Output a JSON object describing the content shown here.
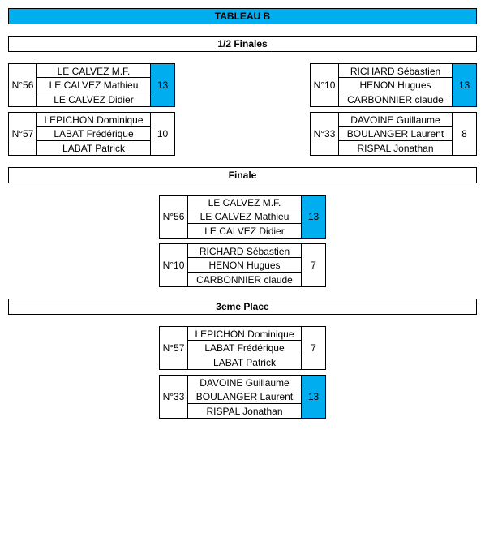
{
  "colors": {
    "highlight": "#00aeef",
    "border": "#000000",
    "bg": "#ffffff"
  },
  "typography": {
    "font_family": "Arial, sans-serif",
    "font_size_pt": 9
  },
  "title": "TABLEAU B",
  "sections": [
    {
      "header": "1/2 Finales",
      "layout": "pairs",
      "rows": [
        [
          {
            "num": "N°56",
            "players": [
              "LE CALVEZ M.F.",
              "LE CALVEZ Mathieu",
              "LE CALVEZ Didier"
            ],
            "score": 13,
            "winner": true
          },
          {
            "num": "N°10",
            "players": [
              "RICHARD Sébastien",
              "HENON Hugues",
              "CARBONNIER claude"
            ],
            "score": 13,
            "winner": true
          }
        ],
        [
          {
            "num": "N°57",
            "players": [
              "LEPICHON Dominique",
              "LABAT Frédérique",
              "LABAT Patrick"
            ],
            "score": 10,
            "winner": false
          },
          {
            "num": "N°33",
            "players": [
              "DAVOINE Guillaume",
              "BOULANGER Laurent",
              "RISPAL Jonathan"
            ],
            "score": 8,
            "winner": false
          }
        ]
      ]
    },
    {
      "header": "Finale",
      "layout": "single",
      "rows": [
        [
          {
            "num": "N°56",
            "players": [
              "LE CALVEZ M.F.",
              "LE CALVEZ Mathieu",
              "LE CALVEZ Didier"
            ],
            "score": 13,
            "winner": true
          }
        ],
        [
          {
            "num": "N°10",
            "players": [
              "RICHARD Sébastien",
              "HENON Hugues",
              "CARBONNIER claude"
            ],
            "score": 7,
            "winner": false
          }
        ]
      ]
    },
    {
      "header": "3eme Place",
      "layout": "single",
      "rows": [
        [
          {
            "num": "N°57",
            "players": [
              "LEPICHON Dominique",
              "LABAT Frédérique",
              "LABAT Patrick"
            ],
            "score": 7,
            "winner": false
          }
        ],
        [
          {
            "num": "N°33",
            "players": [
              "DAVOINE Guillaume",
              "BOULANGER Laurent",
              "RISPAL Jonathan"
            ],
            "score": 13,
            "winner": true
          }
        ]
      ]
    }
  ]
}
